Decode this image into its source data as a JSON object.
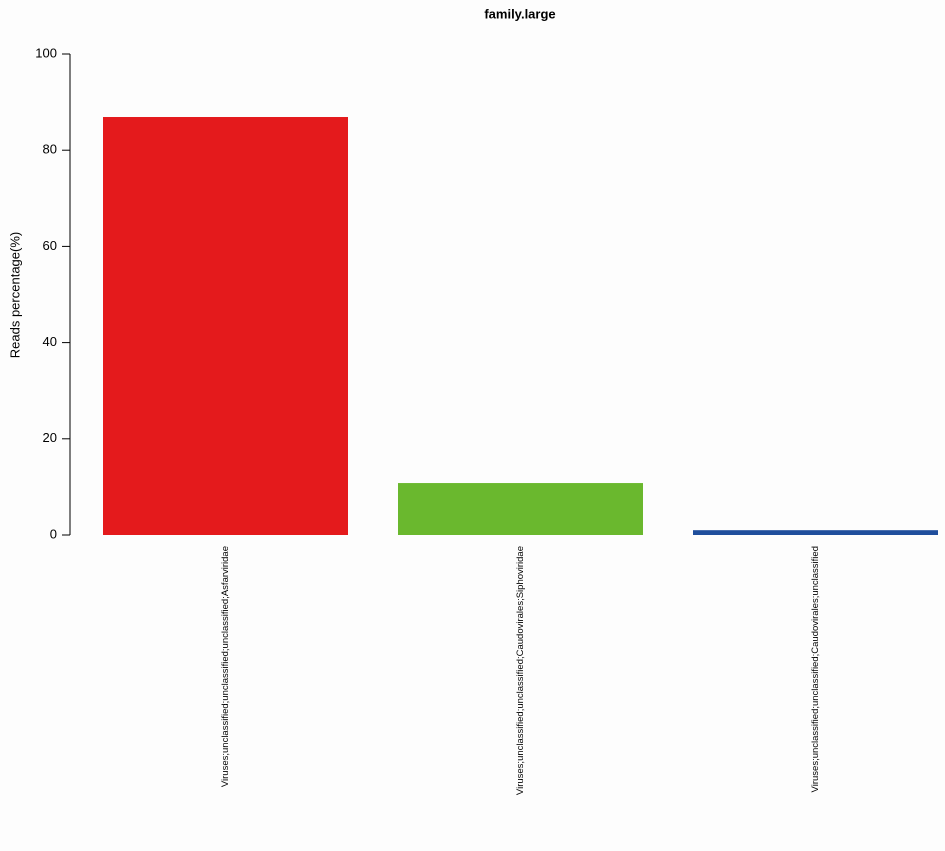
{
  "chart_data": {
    "type": "bar",
    "title": "family.large",
    "y_label": "Reads percentage(%)",
    "categories": [
      "Viruses;unclassified;unclassified;unclassified;Asfarviridae",
      "Viruses;unclassified;unclassified;Caudovirales;Siphoviridae",
      "Viruses;unclassified;unclassified;Caudovirales;unclassified"
    ],
    "values": [
      86.9,
      10.8,
      1.0
    ],
    "colors": [
      "#e41a1c",
      "#6ab82e",
      "#1f4e9c"
    ],
    "ylim": [
      0,
      100
    ],
    "yticks": [
      0,
      20,
      40,
      60,
      80,
      100
    ]
  }
}
